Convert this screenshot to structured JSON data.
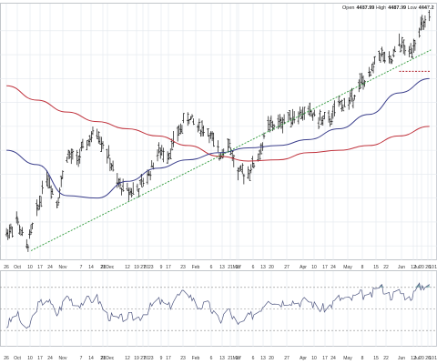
{
  "header": {
    "open_label": "Open",
    "open_value": "4487.99",
    "high_label": "High",
    "high_value": "4487.99",
    "low_label": "Low",
    "low_value": "4447.2"
  },
  "colors": {
    "background": "#ffffff",
    "grid": "#e3e8ee",
    "price_bars": "#111111",
    "ma_50": "#3b3f8c",
    "ma_200": "#c0333d",
    "trendline": "#2e9a3a",
    "support": "#b0202a",
    "osc_line": "#4e5680",
    "osc_fill": "#8fb8b8",
    "osc_ref": "#8a8a8a",
    "panel_border": "#9aa0a8"
  },
  "chart_data": [
    {
      "type": "ohlc",
      "x_axis": "date",
      "x_ticks": [
        "26",
        "Oct",
        "10",
        "17",
        "24",
        "Nov",
        "7",
        "14",
        "21",
        "28Dec",
        "12",
        "19",
        "27",
        "2023",
        "9",
        "17",
        "23",
        "Feb",
        "6",
        "13",
        "21",
        "27",
        "Mar",
        "6",
        "13",
        "20",
        "27",
        "Apr",
        "10",
        "17",
        "24",
        "May",
        "8",
        "15",
        "22",
        "Jun",
        "12",
        "20",
        "26",
        "Jul",
        "10",
        "17"
      ],
      "grid": true,
      "trendline": {
        "from": [
          "2022-10-13",
          3580
        ],
        "to": [
          "2023-07-18",
          4420
        ]
      },
      "support_level": {
        "price": 4330,
        "from": "2023-06-26",
        "to": "2023-07-18"
      },
      "series": [
        {
          "name": "",
          "role": "close",
          "x": [
            "2022-09-26",
            "2022-10-03",
            "2022-10-10",
            "2022-10-17",
            "2022-10-24",
            "2022-10-31",
            "2022-11-07",
            "2022-11-14",
            "2022-11-21",
            "2022-11-28",
            "2022-12-05",
            "2022-12-12",
            "2022-12-19",
            "2022-12-27",
            "2023-01-03",
            "2023-01-09",
            "2023-01-17",
            "2023-01-23",
            "2023-01-30",
            "2023-02-06",
            "2023-02-13",
            "2023-02-21",
            "2023-02-27",
            "2023-03-06",
            "2023-03-13",
            "2023-03-20",
            "2023-03-27",
            "2023-04-03",
            "2023-04-10",
            "2023-04-17",
            "2023-04-24",
            "2023-05-01",
            "2023-05-08",
            "2023-05-15",
            "2023-05-22",
            "2023-05-30",
            "2023-06-05",
            "2023-06-12",
            "2023-06-20",
            "2023-06-26",
            "2023-07-03",
            "2023-07-10",
            "2023-07-17"
          ],
          "y": [
            3650,
            3710,
            3590,
            3740,
            3900,
            3780,
            3980,
            3960,
            4030,
            4080,
            3990,
            3860,
            3830,
            3840,
            3900,
            3990,
            3990,
            4070,
            4140,
            4100,
            4080,
            3980,
            4040,
            3900,
            3910,
            3970,
            4100,
            4110,
            4140,
            4150,
            4160,
            4130,
            4120,
            4190,
            4200,
            4280,
            4300,
            4410,
            4360,
            4450,
            4400,
            4510,
            4540
          ]
        },
        {
          "name": "",
          "role": "moving-average-50",
          "x": [
            "2022-09-26",
            "2022-10-17",
            "2022-11-07",
            "2022-11-28",
            "2022-12-19",
            "2023-01-09",
            "2023-01-30",
            "2023-02-21",
            "2023-03-13",
            "2023-04-03",
            "2023-04-24",
            "2023-05-15",
            "2023-06-05",
            "2023-06-26",
            "2023-07-17"
          ],
          "y": [
            4000,
            3940,
            3810,
            3800,
            3870,
            3925,
            3960,
            3990,
            4010,
            4020,
            4045,
            4090,
            4150,
            4240,
            4300
          ]
        },
        {
          "name": "",
          "role": "moving-average-200",
          "x": [
            "2022-09-26",
            "2022-10-17",
            "2022-11-07",
            "2022-11-28",
            "2022-12-19",
            "2023-01-09",
            "2023-01-30",
            "2023-02-21",
            "2023-03-13",
            "2023-04-03",
            "2023-04-24",
            "2023-05-15",
            "2023-06-05",
            "2023-06-26",
            "2023-07-17"
          ],
          "y": [
            4270,
            4210,
            4160,
            4120,
            4090,
            4060,
            4020,
            3975,
            3955,
            3960,
            3990,
            4000,
            4020,
            4060,
            4100
          ]
        }
      ]
    },
    {
      "type": "line",
      "role": "oscillator",
      "x_axis": "date",
      "x_ticks": [
        "26",
        "Oct",
        "10",
        "17",
        "24",
        "Nov",
        "7",
        "14",
        "21",
        "28Dec",
        "12",
        "19",
        "27",
        "2023",
        "9",
        "17",
        "23",
        "Feb",
        "6",
        "13",
        "21",
        "27",
        "Mar",
        "6",
        "13",
        "20",
        "27",
        "Apr",
        "10",
        "17",
        "24",
        "May",
        "8",
        "15",
        "22",
        "Jun",
        "12",
        "20",
        "26",
        "Jul",
        "10",
        "17"
      ],
      "reference_levels": [
        70,
        50,
        30
      ],
      "grid": true,
      "series": [
        {
          "name": "",
          "x": [
            "2022-09-26",
            "2022-10-03",
            "2022-10-10",
            "2022-10-17",
            "2022-10-24",
            "2022-10-31",
            "2022-11-07",
            "2022-11-14",
            "2022-11-21",
            "2022-11-28",
            "2022-12-05",
            "2022-12-12",
            "2022-12-19",
            "2022-12-27",
            "2023-01-03",
            "2023-01-09",
            "2023-01-17",
            "2023-01-23",
            "2023-01-30",
            "2023-02-06",
            "2023-02-13",
            "2023-02-21",
            "2023-02-27",
            "2023-03-06",
            "2023-03-13",
            "2023-03-20",
            "2023-03-27",
            "2023-04-03",
            "2023-04-10",
            "2023-04-17",
            "2023-04-24",
            "2023-05-01",
            "2023-05-08",
            "2023-05-15",
            "2023-05-22",
            "2023-05-30",
            "2023-06-05",
            "2023-06-12",
            "2023-06-20",
            "2023-06-26",
            "2023-07-03",
            "2023-07-10",
            "2023-07-17"
          ],
          "y": [
            34,
            46,
            28,
            52,
            60,
            45,
            62,
            54,
            58,
            60,
            44,
            40,
            43,
            42,
            50,
            58,
            52,
            62,
            66,
            52,
            54,
            38,
            50,
            34,
            42,
            48,
            60,
            55,
            58,
            56,
            58,
            50,
            52,
            60,
            58,
            64,
            60,
            72,
            62,
            66,
            60,
            70,
            74
          ]
        }
      ]
    }
  ]
}
